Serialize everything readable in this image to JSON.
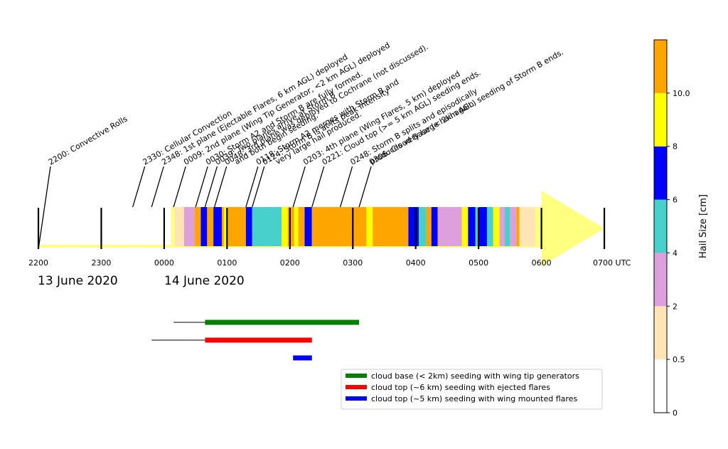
{
  "chart_data": {
    "type": "timeline",
    "time_unit": "UTC",
    "axis": {
      "x_range": [
        "2200",
        "0700"
      ],
      "ticks": [
        "2200",
        "2300",
        "0000",
        "0100",
        "0200",
        "0300",
        "0400",
        "0500",
        "0600",
        "0700 UTC"
      ],
      "date_labels": [
        "13 June 2020",
        "14 June 2020"
      ]
    },
    "annotations": [
      {
        "time": "2200",
        "text": "2200: Convective Rolls"
      },
      {
        "time": "2330",
        "text": "2330: Cellular Convection"
      },
      {
        "time": "2348",
        "text": "2348: 1st plane (Ejectable Flares, 6 km AGL) deployed"
      },
      {
        "time": "0009",
        "text": "0009: 2nd plane (Wing Tip Generator, <2 km AGL) deployed"
      },
      {
        "time": "0030",
        "text": "0030: Storm A2 and Storm B are fully formed."
      },
      {
        "time": "0039",
        "text": [
          "0039: Two planes arrive at Storm B",
          "and both begin seeding."
        ]
      },
      {
        "time": "0048",
        "text": "0048: 3rd plane was deployed to Cochrane (not discussed)."
      },
      {
        "time": "0118",
        "text": [
          "0118: Storm A2 merges with Storm B and",
          "very large hail produced."
        ]
      },
      {
        "time": "0124",
        "text": "0124: Storm B is at its peak intensity"
      },
      {
        "time": "0203",
        "text": "0203: 4th plane (Wing Flares, 5 km) deployed"
      },
      {
        "time": "0221",
        "text": "0221: Cloud top (>= 5 km AGL) seeding ends."
      },
      {
        "time": "0248",
        "text": [
          "0248: Storm B splits and episodically",
          "produces very large hail again."
        ]
      },
      {
        "time": "0306",
        "text": "0306: Cloud Base (< 2km AGL) seeding of Storm B ends."
      }
    ],
    "hail_segments": [
      {
        "start": "0010",
        "end": "0019",
        "hail_cm": 1.0
      },
      {
        "start": "0019",
        "end": "0029",
        "hail_cm": 3.0
      },
      {
        "start": "0029",
        "end": "0035",
        "hail_cm": 10.5
      },
      {
        "start": "0035",
        "end": "0041",
        "hail_cm": 7.0
      },
      {
        "start": "0041",
        "end": "0047",
        "hail_cm": 10.5
      },
      {
        "start": "0047",
        "end": "0055",
        "hail_cm": 7.0
      },
      {
        "start": "0055",
        "end": "0057",
        "hail_cm": 10.5
      },
      {
        "start": "0057",
        "end": "0101",
        "hail_cm": 9.0
      },
      {
        "start": "0101",
        "end": "0118",
        "hail_cm": 10.5
      },
      {
        "start": "0118",
        "end": "0124",
        "hail_cm": 7.0
      },
      {
        "start": "0124",
        "end": "0152",
        "hail_cm": 5.0
      },
      {
        "start": "0152",
        "end": "0158",
        "hail_cm": 9.0
      },
      {
        "start": "0158",
        "end": "0204",
        "hail_cm": 10.5
      },
      {
        "start": "0204",
        "end": "0208",
        "hail_cm": 9.0
      },
      {
        "start": "0208",
        "end": "0214",
        "hail_cm": 10.5
      },
      {
        "start": "0214",
        "end": "0221",
        "hail_cm": 7.0
      },
      {
        "start": "0221",
        "end": "0313",
        "hail_cm": 10.5
      },
      {
        "start": "0313",
        "end": "0319",
        "hail_cm": 9.0
      },
      {
        "start": "0319",
        "end": "0353",
        "hail_cm": 10.5
      },
      {
        "start": "0353",
        "end": "0403",
        "hail_cm": 7.0
      },
      {
        "start": "0403",
        "end": "0410",
        "hail_cm": 5.0
      },
      {
        "start": "0410",
        "end": "0415",
        "hail_cm": 10.5
      },
      {
        "start": "0415",
        "end": "0421",
        "hail_cm": 7.0
      },
      {
        "start": "0421",
        "end": "0444",
        "hail_cm": 3.0
      },
      {
        "start": "0444",
        "end": "0450",
        "hail_cm": 9.0
      },
      {
        "start": "0450",
        "end": "0457",
        "hail_cm": 7.0
      },
      {
        "start": "0457",
        "end": "0500",
        "hail_cm": 5.0
      },
      {
        "start": "0500",
        "end": "0508",
        "hail_cm": 7.0
      },
      {
        "start": "0508",
        "end": "0514",
        "hail_cm": 5.0
      },
      {
        "start": "0514",
        "end": "0520",
        "hail_cm": 9.0
      },
      {
        "start": "0520",
        "end": "0525",
        "hail_cm": 3.0
      },
      {
        "start": "0525",
        "end": "0530",
        "hail_cm": 5.0
      },
      {
        "start": "0530",
        "end": "0536",
        "hail_cm": 3.0
      },
      {
        "start": "0536",
        "end": "0539",
        "hail_cm": 10.5
      },
      {
        "start": "0539",
        "end": "0554",
        "hail_cm": 1.0
      }
    ],
    "seeding_periods": [
      {
        "label": "cloud base (< 2km) seeding with wing tip generators",
        "color": "#008000",
        "transit_start": "0009",
        "start": "0039",
        "end": "0306"
      },
      {
        "label": "cloud top (~6 km) seeding with ejected flares",
        "color": "#ff0000",
        "transit_start": "2348",
        "start": "0039",
        "end": "0221"
      },
      {
        "label": "cloud top (~5 km) seeding with wing mounted flares",
        "color": "#0000ff",
        "transit_start": "0203",
        "start": "0203",
        "end": "0221"
      }
    ],
    "colorbar": {
      "label": "Hail Size [cm]",
      "bounds": [
        0,
        0.5,
        2,
        4,
        6,
        8,
        10,
        12
      ],
      "colors": [
        "#ffffff",
        "#ffe4b5",
        "#dda0dd",
        "#48d1cc",
        "#0000ff",
        "#ffff00",
        "#ffa500"
      ],
      "tick_labels": [
        "0",
        "0.5",
        "2",
        "4",
        "6",
        "8",
        "10.0"
      ]
    },
    "arrow_color": "#ffff80"
  }
}
